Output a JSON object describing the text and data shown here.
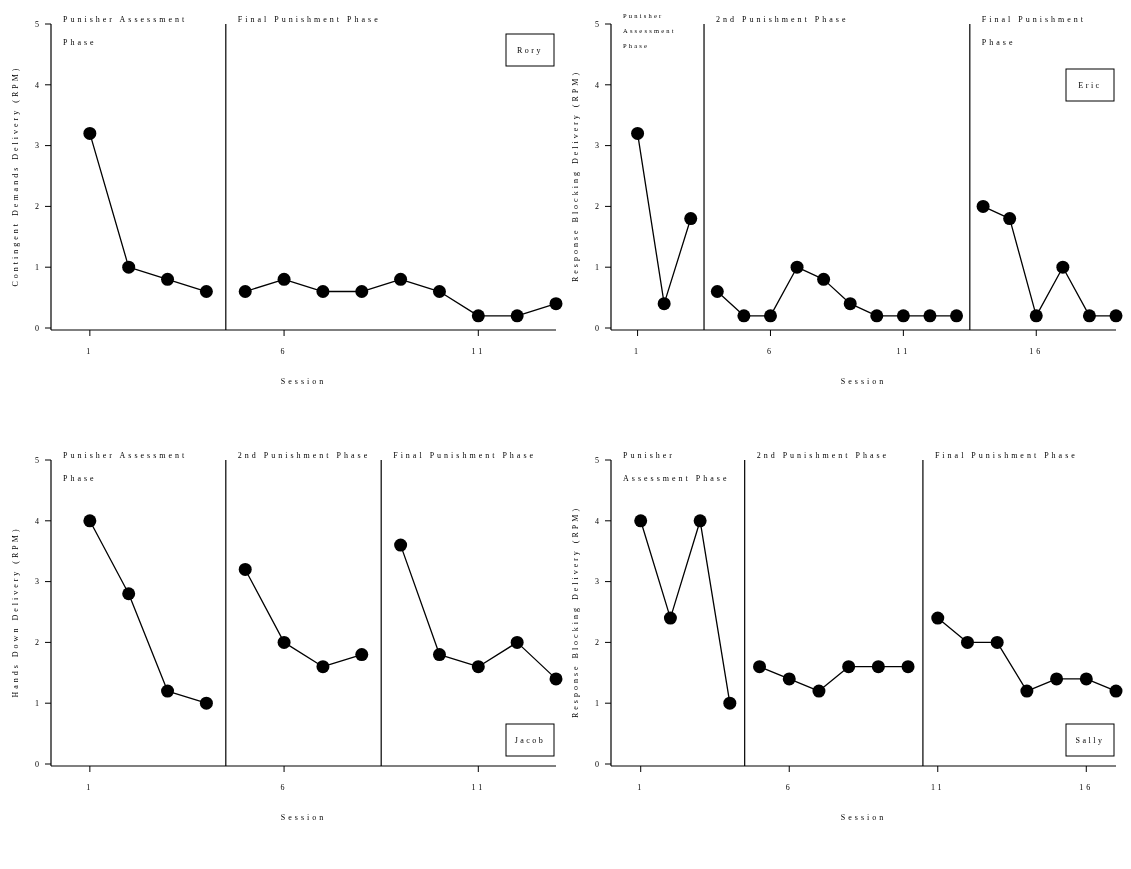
{
  "chart_data": [
    {
      "type": "line",
      "title": "Rory",
      "xlabel": "Session",
      "ylabel": "Contingent Demands Delivery (RPM)",
      "xlim": [
        0,
        13
      ],
      "xticks": [
        1,
        6,
        11
      ],
      "ylim": [
        0,
        5
      ],
      "yticks": [
        0,
        1,
        2,
        3,
        4,
        5
      ],
      "marker": "circle",
      "line_style": "solid",
      "series": [
        {
          "color": "#000000",
          "x": [
            1,
            2,
            3,
            4
          ],
          "values": [
            3.2,
            1.0,
            0.8,
            0.6
          ]
        },
        {
          "color": "#000000",
          "x": [
            5,
            6,
            7,
            8,
            9,
            10,
            11,
            12,
            13
          ],
          "values": [
            0.6,
            0.8,
            0.6,
            0.6,
            0.8,
            0.6,
            0.2,
            0.2,
            0.4
          ]
        }
      ],
      "ref_lines": [
        {
          "axis": "x",
          "value": 4.5,
          "color": "#000000"
        }
      ],
      "annotations": [
        "Punisher Assessment Phase",
        "Final Punishment Phase"
      ]
    },
    {
      "type": "line",
      "title": "Eric",
      "xlabel": "Session",
      "ylabel": "Response Blocking Delivery (RPM)",
      "xlim": [
        0,
        19
      ],
      "xticks": [
        1,
        6,
        11,
        16
      ],
      "ylim": [
        0,
        5
      ],
      "yticks": [
        0,
        1,
        2,
        3,
        4,
        5
      ],
      "marker": "circle",
      "line_style": "solid",
      "series": [
        {
          "color": "#000000",
          "x": [
            1,
            2,
            3
          ],
          "values": [
            3.2,
            0.4,
            1.8
          ]
        },
        {
          "color": "#000000",
          "x": [
            4,
            5,
            6,
            7,
            8,
            9,
            10,
            11,
            12,
            13
          ],
          "values": [
            0.6,
            0.2,
            0.2,
            1.0,
            0.8,
            0.4,
            0.2,
            0.2,
            0.2,
            0.2
          ]
        },
        {
          "color": "#000000",
          "x": [
            14,
            15,
            16,
            17,
            18,
            19
          ],
          "values": [
            2.0,
            1.8,
            0.2,
            1.0,
            0.2,
            0.2
          ]
        }
      ],
      "ref_lines": [
        {
          "axis": "x",
          "value": 3.5,
          "color": "#000000"
        },
        {
          "axis": "x",
          "value": 13.5,
          "color": "#000000"
        }
      ],
      "annotations": [
        "Punisher Assessment Phase",
        "2nd Punishment Phase",
        "Final Punishment Phase"
      ]
    },
    {
      "type": "line",
      "title": "Jacob",
      "xlabel": "Session",
      "ylabel": "Hands Down Delivery (RPM)",
      "xlim": [
        0,
        13
      ],
      "xticks": [
        1,
        6,
        11
      ],
      "ylim": [
        0,
        5
      ],
      "yticks": [
        0,
        1,
        2,
        3,
        4,
        5
      ],
      "marker": "circle",
      "line_style": "solid",
      "series": [
        {
          "color": "#000000",
          "x": [
            1,
            2,
            3,
            4
          ],
          "values": [
            4.0,
            2.8,
            1.2,
            1.0
          ]
        },
        {
          "color": "#000000",
          "x": [
            5,
            6,
            7,
            8
          ],
          "values": [
            3.2,
            2.0,
            1.6,
            1.8
          ]
        },
        {
          "color": "#000000",
          "x": [
            9,
            10,
            11,
            12,
            13
          ],
          "values": [
            3.6,
            1.8,
            1.6,
            2.0,
            1.4
          ]
        }
      ],
      "ref_lines": [
        {
          "axis": "x",
          "value": 4.5,
          "color": "#000000"
        },
        {
          "axis": "x",
          "value": 8.5,
          "color": "#000000"
        }
      ],
      "annotations": [
        "Punisher Assessment Phase",
        "2nd Punishment Phase",
        "Final Punishment Phase"
      ]
    },
    {
      "type": "line",
      "title": "Sally",
      "xlabel": "Session",
      "ylabel": "Response Blocking Delivery (RPM)",
      "xlim": [
        0,
        17
      ],
      "xticks": [
        1,
        6,
        11,
        16
      ],
      "ylim": [
        0,
        5
      ],
      "yticks": [
        0,
        1,
        2,
        3,
        4,
        5
      ],
      "marker": "circle",
      "line_style": "solid",
      "series": [
        {
          "color": "#000000",
          "x": [
            1,
            2,
            3,
            4
          ],
          "values": [
            4.0,
            2.4,
            4.0,
            1.0
          ]
        },
        {
          "color": "#000000",
          "x": [
            5,
            6,
            7,
            8,
            9,
            10
          ],
          "values": [
            1.6,
            1.4,
            1.2,
            1.6,
            1.6,
            1.6
          ]
        },
        {
          "color": "#000000",
          "x": [
            11,
            12,
            13,
            14,
            15,
            16,
            17
          ],
          "values": [
            2.4,
            2.0,
            2.0,
            1.2,
            1.4,
            1.4,
            1.2
          ]
        }
      ],
      "ref_lines": [
        {
          "axis": "x",
          "value": 4.5,
          "color": "#000000"
        },
        {
          "axis": "x",
          "value": 10.5,
          "color": "#000000"
        }
      ],
      "annotations": [
        "Punisher Assessment Phase",
        "2nd Punishment Phase",
        "Final Punishment Phase"
      ]
    }
  ]
}
